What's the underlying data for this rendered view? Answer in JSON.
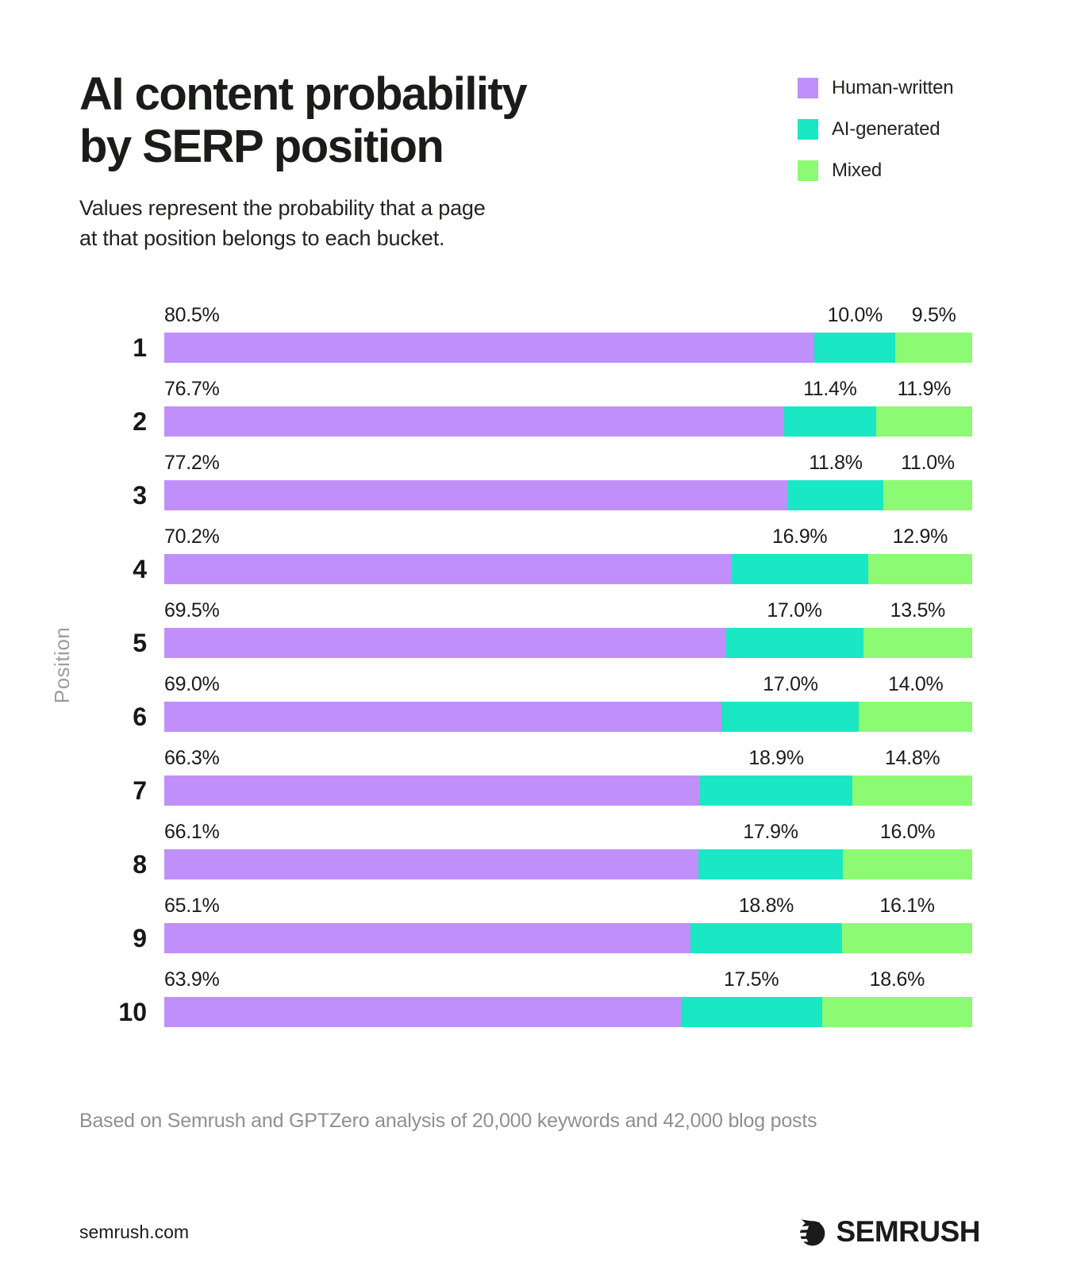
{
  "header": {
    "title": "AI content probability\nby SERP position",
    "subtitle": "Values represent the probability that a page\nat that position belongs to each bucket."
  },
  "legend": [
    {
      "label": "Human-written",
      "color": "#C18FF9",
      "icon": "purple-swatch-icon"
    },
    {
      "label": "AI-generated",
      "color": "#1AE7C4",
      "icon": "teal-swatch-icon"
    },
    {
      "label": "Mixed",
      "color": "#8CFA73",
      "icon": "green-swatch-icon"
    }
  ],
  "chart_data": {
    "type": "bar",
    "orientation": "horizontal",
    "stacked": true,
    "title": "AI content probability by SERP position",
    "xlabel": "",
    "ylabel": "Position",
    "xlim": [
      0,
      100
    ],
    "grid": false,
    "legend_position": "top-right",
    "value_label_format": "one-decimal-percent",
    "categories": [
      "1",
      "2",
      "3",
      "4",
      "5",
      "6",
      "7",
      "8",
      "9",
      "10"
    ],
    "series": [
      {
        "name": "Human-written",
        "color": "#C18FF9",
        "values": [
          80.5,
          76.7,
          77.2,
          70.2,
          69.5,
          69.0,
          66.3,
          66.1,
          65.1,
          63.9
        ]
      },
      {
        "name": "AI-generated",
        "color": "#1AE7C4",
        "values": [
          10.0,
          11.4,
          11.8,
          16.9,
          17.0,
          17.0,
          18.9,
          17.9,
          18.8,
          17.5
        ]
      },
      {
        "name": "Mixed",
        "color": "#8CFA73",
        "values": [
          9.5,
          11.9,
          11.0,
          12.9,
          13.5,
          14.0,
          14.8,
          16.0,
          16.1,
          18.6
        ]
      }
    ]
  },
  "footnote": "Based on Semrush and GPTZero analysis of 20,000 keywords and 42,000 blog posts",
  "footer": {
    "website": "semrush.com",
    "logo_text": "SEMRUSH",
    "logo_icon": "semrush-comet-icon",
    "brand_dark": "#191c18"
  }
}
